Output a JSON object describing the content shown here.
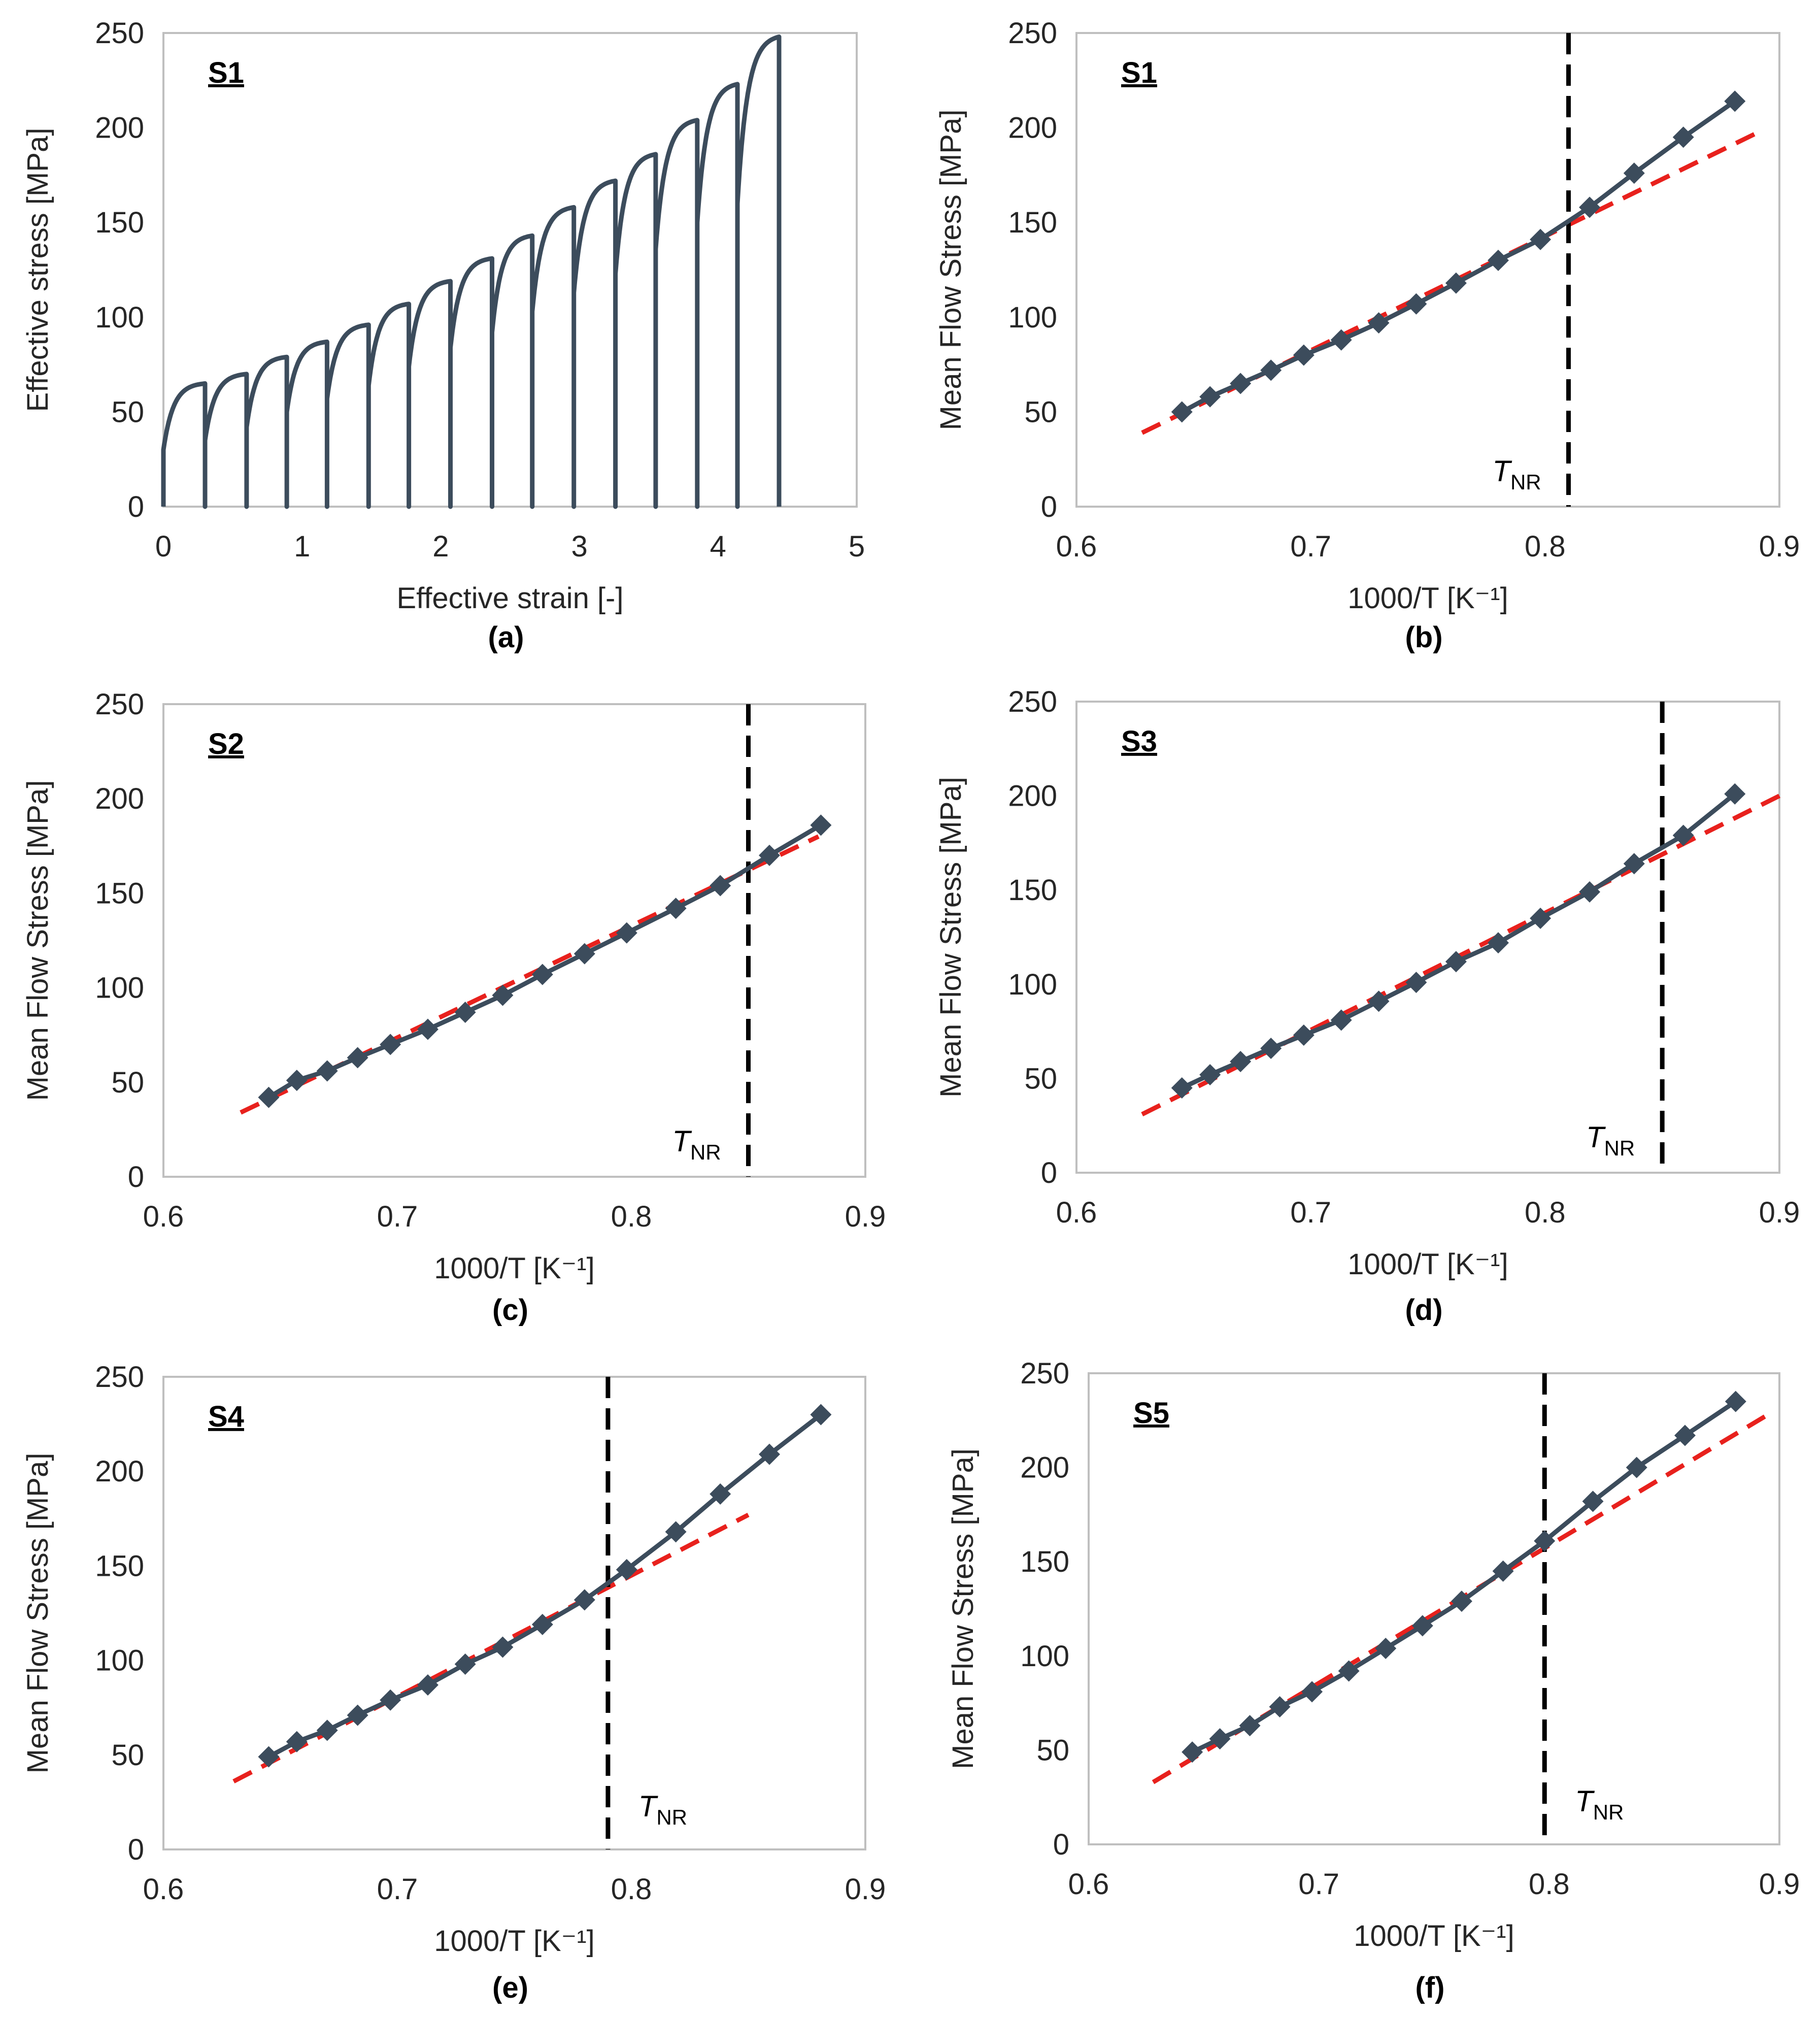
{
  "colors": {
    "series": "#3c4c5c",
    "fit": "#e8211d",
    "tnr_line": "#000000",
    "frame": "#bfbfbf"
  },
  "chart_data": [
    {
      "type": "line",
      "panel": "a",
      "caption": "(a)",
      "tag": "S1",
      "xlabel": "Effective strain [-]",
      "ylabel": "Effective stress [MPa]",
      "xlim": [
        0,
        5
      ],
      "ylim": [
        0,
        250
      ],
      "xticks": [
        0,
        1,
        2,
        3,
        4,
        5
      ],
      "yticks": [
        0,
        50,
        100,
        150,
        200,
        250
      ],
      "passes": [
        {
          "start": 0.0,
          "end": 0.3,
          "s0": 30,
          "peak": 65
        },
        {
          "start": 0.3,
          "end": 0.6,
          "s0": 35,
          "peak": 70
        },
        {
          "start": 0.6,
          "end": 0.89,
          "s0": 42,
          "peak": 79
        },
        {
          "start": 0.89,
          "end": 1.18,
          "s0": 50,
          "peak": 87
        },
        {
          "start": 1.18,
          "end": 1.48,
          "s0": 57,
          "peak": 96
        },
        {
          "start": 1.48,
          "end": 1.77,
          "s0": 64,
          "peak": 107
        },
        {
          "start": 1.77,
          "end": 2.07,
          "s0": 74,
          "peak": 119
        },
        {
          "start": 2.07,
          "end": 2.37,
          "s0": 84,
          "peak": 131
        },
        {
          "start": 2.37,
          "end": 2.66,
          "s0": 92,
          "peak": 143
        },
        {
          "start": 2.66,
          "end": 2.96,
          "s0": 103,
          "peak": 158
        },
        {
          "start": 2.96,
          "end": 3.26,
          "s0": 113,
          "peak": 172
        },
        {
          "start": 3.26,
          "end": 3.55,
          "s0": 123,
          "peak": 186
        },
        {
          "start": 3.55,
          "end": 3.85,
          "s0": 136,
          "peak": 204
        },
        {
          "start": 3.85,
          "end": 4.14,
          "s0": 150,
          "peak": 223
        },
        {
          "start": 4.14,
          "end": 4.44,
          "s0": 160,
          "peak": 248
        }
      ]
    },
    {
      "type": "scatter",
      "panel": "b",
      "caption": "(b)",
      "tag": "S1",
      "xlabel": "1000/T [K⁻¹]",
      "ylabel": "Mean Flow Stress [MPa]",
      "xlim": [
        0.6,
        0.9
      ],
      "ylim": [
        0,
        250
      ],
      "xticks": [
        0.6,
        0.7,
        0.8,
        0.9
      ],
      "yticks": [
        0,
        50,
        100,
        150,
        200,
        250
      ],
      "x": [
        0.645,
        0.657,
        0.67,
        0.683,
        0.697,
        0.713,
        0.729,
        0.745,
        0.762,
        0.78,
        0.798,
        0.819,
        0.838,
        0.859,
        0.881
      ],
      "y": [
        50,
        58,
        65,
        72,
        80,
        88,
        97,
        107,
        118,
        130,
        141,
        158,
        176,
        195,
        214
      ],
      "fit_line": {
        "x": [
          0.628,
          0.89
        ],
        "y": [
          39,
          197
        ]
      },
      "tnr_x": 0.81,
      "tnr_label": {
        "main": "T",
        "sub": "NR"
      }
    },
    {
      "type": "scatter",
      "panel": "c",
      "caption": "(c)",
      "tag": "S2",
      "xlabel": "1000/T [K⁻¹]",
      "ylabel": "Mean Flow Stress [MPa]",
      "xlim": [
        0.6,
        0.9
      ],
      "ylim": [
        0,
        250
      ],
      "xticks": [
        0.6,
        0.7,
        0.8,
        0.9
      ],
      "yticks": [
        0,
        50,
        100,
        150,
        200,
        250
      ],
      "x": [
        0.645,
        0.657,
        0.67,
        0.683,
        0.697,
        0.713,
        0.729,
        0.745,
        0.762,
        0.78,
        0.798,
        0.819,
        0.838,
        0.859,
        0.881
      ],
      "y": [
        42,
        51,
        56,
        63,
        70,
        78,
        87,
        96,
        107,
        118,
        129,
        142,
        154,
        170,
        186
      ],
      "fit_line": {
        "x": [
          0.633,
          0.88
        ],
        "y": [
          34,
          180
        ]
      },
      "tnr_x": 0.85,
      "tnr_label": {
        "main": "T",
        "sub": "NR"
      }
    },
    {
      "type": "scatter",
      "panel": "d",
      "caption": "(d)",
      "tag": "S3",
      "xlabel": "1000/T [K⁻¹]",
      "ylabel": "Mean Flow Stress [MPa]",
      "xlim": [
        0.6,
        0.9
      ],
      "ylim": [
        0,
        250
      ],
      "xticks": [
        0.6,
        0.7,
        0.8,
        0.9
      ],
      "yticks": [
        0,
        50,
        100,
        150,
        200,
        250
      ],
      "x": [
        0.645,
        0.657,
        0.67,
        0.683,
        0.697,
        0.713,
        0.729,
        0.745,
        0.762,
        0.78,
        0.798,
        0.819,
        0.838,
        0.859,
        0.881
      ],
      "y": [
        45,
        52,
        59,
        66,
        73,
        81,
        91,
        101,
        112,
        122,
        135,
        149,
        164,
        179,
        201
      ],
      "fit_line": {
        "x": [
          0.628,
          0.9
        ],
        "y": [
          31,
          200
        ]
      },
      "tnr_x": 0.85,
      "tnr_label": {
        "main": "T",
        "sub": "NR"
      }
    },
    {
      "type": "scatter",
      "panel": "e",
      "caption": "(e)",
      "tag": "S4",
      "xlabel": "1000/T [K⁻¹]",
      "ylabel": "Mean Flow Stress [MPa]",
      "xlim": [
        0.6,
        0.9
      ],
      "ylim": [
        0,
        250
      ],
      "xticks": [
        0.6,
        0.7,
        0.8,
        0.9
      ],
      "yticks": [
        0,
        50,
        100,
        150,
        200,
        250
      ],
      "x": [
        0.645,
        0.657,
        0.67,
        0.683,
        0.697,
        0.713,
        0.729,
        0.745,
        0.762,
        0.78,
        0.798,
        0.819,
        0.838,
        0.859,
        0.881
      ],
      "y": [
        49,
        57,
        63,
        71,
        79,
        87,
        98,
        107,
        119,
        132,
        148,
        168,
        188,
        209,
        230
      ],
      "fit_line": {
        "x": [
          0.63,
          0.85
        ],
        "y": [
          36,
          177
        ]
      },
      "tnr_x": 0.79,
      "tnr_label": {
        "main": "T",
        "sub": "NR"
      }
    },
    {
      "type": "scatter",
      "panel": "f",
      "caption": "(f)",
      "tag": "S5",
      "xlabel": "1000/T [K⁻¹]",
      "ylabel": "Mean Flow Stress [MPa]",
      "xlim": [
        0.6,
        0.9
      ],
      "ylim": [
        0,
        250
      ],
      "xticks": [
        0.6,
        0.7,
        0.8,
        0.9
      ],
      "yticks": [
        0,
        50,
        100,
        150,
        200,
        250
      ],
      "x": [
        0.645,
        0.657,
        0.67,
        0.683,
        0.697,
        0.713,
        0.729,
        0.745,
        0.762,
        0.78,
        0.798,
        0.819,
        0.838,
        0.859,
        0.881
      ],
      "y": [
        49,
        56,
        63,
        73,
        81,
        92,
        104,
        116,
        129,
        145,
        161,
        182,
        200,
        217,
        235
      ],
      "fit_line": {
        "x": [
          0.628,
          0.895
        ],
        "y": [
          33,
          228
        ]
      },
      "tnr_x": 0.798,
      "tnr_label": {
        "main": "T",
        "sub": "NR"
      }
    }
  ]
}
